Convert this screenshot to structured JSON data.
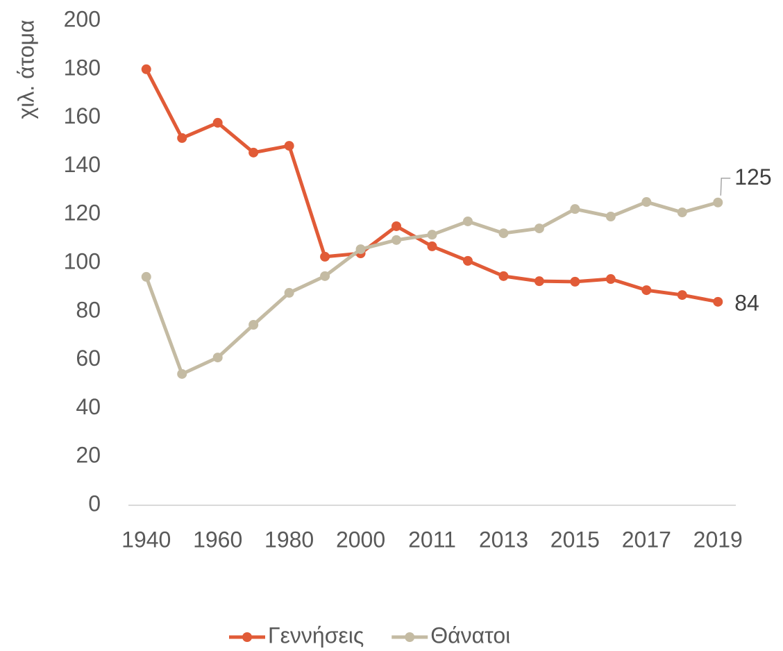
{
  "chart_data": {
    "type": "line",
    "y_label": "χιλ. άτομα",
    "categories": [
      "1940",
      null,
      "1960",
      null,
      "1980",
      null,
      "2000",
      null,
      "2011",
      null,
      "2013",
      null,
      "2015",
      null,
      "2017",
      null,
      "2019"
    ],
    "series": [
      {
        "name": "Γεννήσεις",
        "color": "#e15b37",
        "values": [
          180,
          151.6,
          157.9,
          145.6,
          148.4,
          102.6,
          104,
          115.2,
          106.9,
          100.9,
          94.6,
          92.5,
          92.3,
          93.4,
          88.8,
          86.8,
          84
        ]
      },
      {
        "name": "Θάνατοι",
        "color": "#c4bba3",
        "values": [
          94.3,
          54.2,
          61,
          74.5,
          87.7,
          94.6,
          105.7,
          109.5,
          111.7,
          117.2,
          112.3,
          114.3,
          122.3,
          119.2,
          125.2,
          120.9,
          125
        ]
      }
    ],
    "ylim": [
      0,
      200
    ],
    "yticks": [
      0,
      20,
      40,
      60,
      80,
      100,
      120,
      140,
      160,
      180,
      200
    ],
    "grid": false,
    "data_labels": "last",
    "legend": "bottom"
  }
}
